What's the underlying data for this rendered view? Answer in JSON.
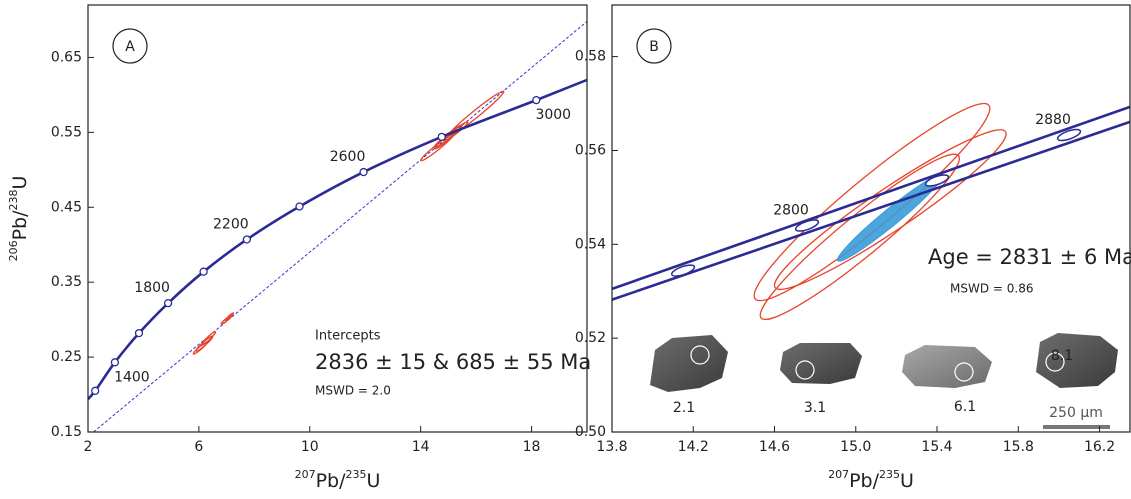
{
  "chart_data": [
    {
      "type": "concordia",
      "panel": "A",
      "xlabel": {
        "sup1": "207",
        "text1": "Pb/",
        "sup2": "235",
        "text2": "U"
      },
      "ylabel": {
        "sup1": "206",
        "text1": "Pb/",
        "sup2": "238",
        "text2": "U"
      },
      "xlim": [
        2,
        20
      ],
      "ylim": [
        0.15,
        0.72
      ],
      "xticks": [
        2,
        6,
        10,
        14,
        18
      ],
      "yticks": [
        0.15,
        0.25,
        0.35,
        0.45,
        0.55,
        0.65
      ],
      "curves": [
        {
          "color": "#2b2b96",
          "x": [
            1.9,
            2.26,
            2.97,
            3.84,
            4.89,
            6.17,
            7.73,
            9.63,
            11.94,
            14.76,
            18.17,
            20
          ],
          "y": [
            0.19,
            0.205,
            0.243,
            0.282,
            0.322,
            0.364,
            0.407,
            0.451,
            0.497,
            0.544,
            0.593,
            0.62
          ]
        }
      ],
      "markers": {
        "shape": "circle",
        "x": [
          2.26,
          2.97,
          3.84,
          4.89,
          6.17,
          7.73,
          9.63,
          11.94,
          14.76,
          18.17
        ],
        "y": [
          0.205,
          0.243,
          0.282,
          0.322,
          0.364,
          0.407,
          0.451,
          0.497,
          0.544,
          0.593
        ],
        "labels": [
          null,
          1400,
          null,
          1800,
          null,
          2200,
          null,
          2600,
          null,
          3000
        ]
      },
      "discordia": {
        "color": "#3535d0",
        "x": [
          2.2,
          20
        ],
        "y": [
          0.15,
          0.698
        ]
      },
      "ellipses": {
        "color": "#e8442a",
        "x": [
          6.05,
          6.2,
          6.35,
          7.0,
          7.1,
          14.6,
          14.9,
          15.0,
          15.3,
          16.0
        ],
        "y": [
          0.262,
          0.268,
          0.275,
          0.3,
          0.304,
          0.53,
          0.54,
          0.545,
          0.552,
          0.575
        ],
        "sx": [
          0.25,
          0.3,
          0.25,
          0.2,
          0.15,
          0.6,
          0.4,
          0.5,
          0.4,
          1.0
        ],
        "sy": [
          0.008,
          0.01,
          0.009,
          0.006,
          0.005,
          0.018,
          0.012,
          0.015,
          0.012,
          0.03
        ],
        "rho": [
          0.95,
          0.95,
          0.95,
          0.95,
          0.95,
          0.97,
          0.96,
          0.97,
          0.96,
          0.98
        ]
      },
      "annotations": [
        "Intercepts",
        "2836 ± 15 & 685 ± 55 Ma",
        "MSWD = 2.0"
      ]
    },
    {
      "type": "concordia",
      "panel": "B",
      "xlabel": {
        "sup1": "207",
        "text1": "Pb/",
        "sup2": "235",
        "text2": "U"
      },
      "xlim": [
        13.8,
        16.35
      ],
      "ylim": [
        0.5,
        0.591
      ],
      "xticks": [
        13.8,
        14.2,
        14.6,
        {
          "value": 15,
          "label": "15.0"
        },
        15.4,
        15.8,
        16.2
      ],
      "yticks": [
        {
          "value": 0.5,
          "label": "0.50"
        },
        0.52,
        0.54,
        0.56,
        0.58
      ],
      "curves": [
        {
          "color": "#2b2b96",
          "x": [
            13.8,
            16.35
          ],
          "y": [
            0.5305,
            0.5693
          ]
        },
        {
          "color": "#2b2b96",
          "x": [
            13.8,
            16.35
          ],
          "y": [
            0.5282,
            0.5661
          ]
        }
      ],
      "markers": {
        "shape": "ellipse",
        "x": [
          14.15,
          14.76,
          15.4,
          16.05
        ],
        "y": [
          0.5344,
          0.544,
          0.5536,
          0.5633
        ],
        "labels": [
          null,
          2800,
          null,
          2880
        ]
      },
      "ellipses": {
        "color": "#e8442a",
        "x": [
          15.08,
          15.02,
          15.17
        ],
        "y": [
          0.549,
          0.5416,
          0.5474
        ],
        "sx": [
          0.58,
          0.49,
          0.57
        ],
        "sy": [
          0.021,
          0.0176,
          0.017
        ],
        "rho": [
          0.95,
          0.95,
          0.95
        ]
      },
      "mean_ellipse": {
        "color": "#3b9bd8",
        "x": 15.17,
        "y": 0.5457,
        "sx": 0.26,
        "sy": 0.0093,
        "rho": 0.97
      },
      "annotations": [
        "Age = 2831 ± 6 Ma",
        "MSWD = 0.86"
      ],
      "grains": [
        "2.1",
        "3.1",
        "6.1",
        "8.1"
      ],
      "scale_bar": "250 µm"
    }
  ]
}
